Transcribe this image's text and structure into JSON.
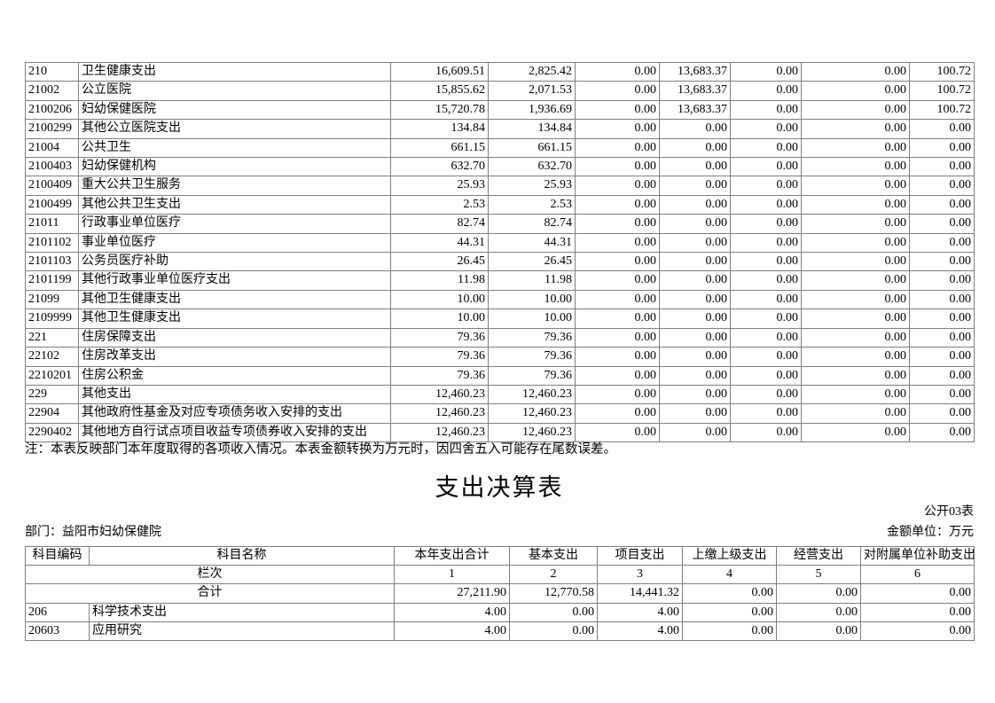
{
  "note": "注：本表反映部门本年度取得的各项收入情况。本表金额转换为万元时，因四舍五入可能存在尾数误差。",
  "title": "支出决算表",
  "table_label": "公开03表",
  "department": "部门：益阳市妇幼保健院",
  "unit": "金额单位：万元",
  "income_table": {
    "rows": [
      {
        "code": "210",
        "name": "卫生健康支出",
        "values": [
          "16,609.51",
          "2,825.42",
          "0.00",
          "13,683.37",
          "0.00",
          "0.00",
          "100.72"
        ]
      },
      {
        "code": "21002",
        "name": "公立医院",
        "values": [
          "15,855.62",
          "2,071.53",
          "0.00",
          "13,683.37",
          "0.00",
          "0.00",
          "100.72"
        ]
      },
      {
        "code": "2100206",
        "name": "妇幼保健医院",
        "values": [
          "15,720.78",
          "1,936.69",
          "0.00",
          "13,683.37",
          "0.00",
          "0.00",
          "100.72"
        ]
      },
      {
        "code": "2100299",
        "name": "其他公立医院支出",
        "values": [
          "134.84",
          "134.84",
          "0.00",
          "0.00",
          "0.00",
          "0.00",
          "0.00"
        ]
      },
      {
        "code": "21004",
        "name": "公共卫生",
        "values": [
          "661.15",
          "661.15",
          "0.00",
          "0.00",
          "0.00",
          "0.00",
          "0.00"
        ]
      },
      {
        "code": "2100403",
        "name": "妇幼保健机构",
        "values": [
          "632.70",
          "632.70",
          "0.00",
          "0.00",
          "0.00",
          "0.00",
          "0.00"
        ]
      },
      {
        "code": "2100409",
        "name": "重大公共卫生服务",
        "values": [
          "25.93",
          "25.93",
          "0.00",
          "0.00",
          "0.00",
          "0.00",
          "0.00"
        ]
      },
      {
        "code": "2100499",
        "name": "其他公共卫生支出",
        "values": [
          "2.53",
          "2.53",
          "0.00",
          "0.00",
          "0.00",
          "0.00",
          "0.00"
        ]
      },
      {
        "code": "21011",
        "name": "行政事业单位医疗",
        "values": [
          "82.74",
          "82.74",
          "0.00",
          "0.00",
          "0.00",
          "0.00",
          "0.00"
        ]
      },
      {
        "code": "2101102",
        "name": "事业单位医疗",
        "values": [
          "44.31",
          "44.31",
          "0.00",
          "0.00",
          "0.00",
          "0.00",
          "0.00"
        ]
      },
      {
        "code": "2101103",
        "name": "公务员医疗补助",
        "values": [
          "26.45",
          "26.45",
          "0.00",
          "0.00",
          "0.00",
          "0.00",
          "0.00"
        ]
      },
      {
        "code": "2101199",
        "name": "其他行政事业单位医疗支出",
        "values": [
          "11.98",
          "11.98",
          "0.00",
          "0.00",
          "0.00",
          "0.00",
          "0.00"
        ]
      },
      {
        "code": "21099",
        "name": "其他卫生健康支出",
        "values": [
          "10.00",
          "10.00",
          "0.00",
          "0.00",
          "0.00",
          "0.00",
          "0.00"
        ]
      },
      {
        "code": "2109999",
        "name": "其他卫生健康支出",
        "values": [
          "10.00",
          "10.00",
          "0.00",
          "0.00",
          "0.00",
          "0.00",
          "0.00"
        ]
      },
      {
        "code": "221",
        "name": "住房保障支出",
        "values": [
          "79.36",
          "79.36",
          "0.00",
          "0.00",
          "0.00",
          "0.00",
          "0.00"
        ]
      },
      {
        "code": "22102",
        "name": "住房改革支出",
        "values": [
          "79.36",
          "79.36",
          "0.00",
          "0.00",
          "0.00",
          "0.00",
          "0.00"
        ]
      },
      {
        "code": "2210201",
        "name": "住房公积金",
        "values": [
          "79.36",
          "79.36",
          "0.00",
          "0.00",
          "0.00",
          "0.00",
          "0.00"
        ]
      },
      {
        "code": "229",
        "name": "其他支出",
        "values": [
          "12,460.23",
          "12,460.23",
          "0.00",
          "0.00",
          "0.00",
          "0.00",
          "0.00"
        ]
      },
      {
        "code": "22904",
        "name": "其他政府性基金及对应专项债务收入安排的支出",
        "values": [
          "12,460.23",
          "12,460.23",
          "0.00",
          "0.00",
          "0.00",
          "0.00",
          "0.00"
        ]
      },
      {
        "code": "2290402",
        "name": "其他地方自行试点项目收益专项债券收入安排的支出",
        "values": [
          "12,460.23",
          "12,460.23",
          "0.00",
          "0.00",
          "0.00",
          "0.00",
          "0.00"
        ]
      }
    ]
  },
  "expenditure_table": {
    "headers": [
      "科目编码",
      "科目名称",
      "本年支出合计",
      "基本支出",
      "项目支出",
      "上缴上级支出",
      "经营支出",
      "对附属单位补助支出"
    ],
    "index_label": "栏次",
    "column_numbers": [
      "1",
      "2",
      "3",
      "4",
      "5",
      "6"
    ],
    "total_row": {
      "label": "合计",
      "values": [
        "27,211.90",
        "12,770.58",
        "14,441.32",
        "0.00",
        "0.00",
        "0.00"
      ]
    },
    "rows": [
      {
        "code": "206",
        "name": "科学技术支出",
        "values": [
          "4.00",
          "0.00",
          "4.00",
          "0.00",
          "0.00",
          "0.00"
        ]
      },
      {
        "code": "20603",
        "name": "应用研究",
        "values": [
          "4.00",
          "0.00",
          "4.00",
          "0.00",
          "0.00",
          "0.00"
        ]
      }
    ]
  }
}
